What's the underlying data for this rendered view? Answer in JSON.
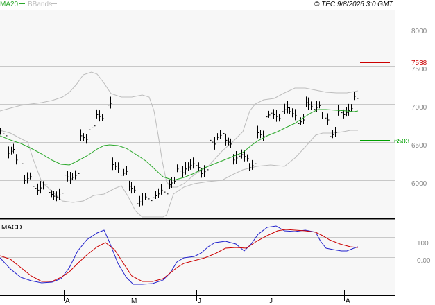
{
  "header": {
    "ma_label": "MA20",
    "bbands_label": "BBands",
    "copyright": "© TEC 9/8/2026 3:0 GMT"
  },
  "macd_label": "MACD",
  "colors": {
    "background": "#ffffff",
    "plot_bg": "#f7f7f7",
    "grid": "#c8c8c8",
    "frame": "#000000",
    "price_bar": "#000000",
    "ma20": "#2aa82a",
    "bbands": "#bcbcbc",
    "resistance": "#cc0000",
    "support": "#00a000",
    "macd_line": "#2222cc",
    "signal_line": "#cc0000",
    "axis_text": "#888888"
  },
  "chart_data": [
    {
      "type": "line",
      "title": "",
      "description_series": "daily OHLC price bars with 20-period moving average and Bollinger Bands",
      "y_axis_ticks": [
        "8000",
        "7500",
        "7000",
        "6500",
        "6000"
      ],
      "ylim": [
        5520,
        8220
      ],
      "x_axis_ticks": [
        "A",
        "M",
        "J",
        "J",
        "A"
      ],
      "grid": true,
      "levels": [
        {
          "name": "resistance",
          "value": 7538,
          "label": "7538"
        },
        {
          "name": "support",
          "value": 6503,
          "label": "6503"
        }
      ],
      "series": [
        {
          "name": "MA20",
          "values": [
            6560,
            6520,
            6470,
            6420,
            6370,
            6320,
            6260,
            6190,
            6150,
            6110,
            6095,
            6110,
            6180,
            6320,
            6480,
            6530,
            6500,
            6390,
            6240,
            6080,
            6020,
            6000,
            6010,
            6060,
            6130,
            6230,
            6360,
            6450,
            6520,
            6610,
            6700,
            6760,
            6860,
            6930,
            6940,
            6980,
            6980,
            6970,
            6965,
            6968
          ]
        },
        {
          "name": "price",
          "values": [
            6650,
            6420,
            6280,
            6060,
            5930,
            5960,
            5850,
            5840,
            6080,
            6100,
            6600,
            6730,
            6880,
            7030,
            6220,
            6130,
            5930,
            5750,
            5790,
            5830,
            5880,
            6000,
            6160,
            6210,
            6230,
            6150,
            6540,
            6630,
            6540,
            6330,
            6350,
            6230,
            6640,
            6900,
            6880,
            6970,
            6920,
            6810,
            7040,
            7000,
            6860,
            6640,
            6930,
            6960,
            7120
          ]
        },
        {
          "name": "BBands upper",
          "values": [
            6620,
            6660,
            6700,
            6720,
            6740,
            6770,
            6800,
            6860,
            6980,
            7120,
            7160,
            7140,
            6920,
            6400,
            6000,
            5720,
            5480,
            5420,
            5480,
            5580,
            5720,
            5950,
            6220,
            6500,
            6840,
            6820,
            6960,
            7210,
            7220,
            7280,
            7330,
            7400,
            7440,
            7450,
            7480,
            7480,
            7480,
            7470,
            7470,
            7480
          ]
        },
        {
          "name": "BBands lower",
          "values": [
            6420,
            6380,
            6300,
            6260,
            6000,
            5720,
            5560,
            5440,
            5430,
            5460,
            5500,
            5620,
            5720,
            5920,
            6050,
            6060,
            6060,
            6070,
            6080,
            6090,
            6120,
            6210,
            6290,
            6300,
            6290,
            6310,
            6330,
            6490,
            6590,
            6640,
            6680,
            6690,
            6680,
            6680,
            6690,
            6680,
            6690,
            6700,
            6710,
            6720
          ]
        }
      ]
    },
    {
      "type": "line",
      "title": "MACD",
      "y_axis_ticks": [
        "100",
        "0.00"
      ],
      "series": [
        {
          "name": "MACD",
          "values": [
            2,
            -20,
            -90,
            -150,
            -175,
            -180,
            -170,
            -160,
            -120,
            -40,
            80,
            200,
            280,
            300,
            220,
            90,
            -40,
            -140,
            -180,
            -190,
            -180,
            -160,
            -110,
            -40,
            20,
            60,
            80,
            100,
            140,
            160,
            130,
            100,
            70,
            60,
            100,
            200,
            260,
            270,
            240,
            220,
            210,
            200,
            150,
            20,
            -40,
            -40,
            -20,
            -10
          ]
        },
        {
          "name": "Signal",
          "values": [
            5,
            -5,
            -40,
            -90,
            -140,
            -170,
            -175,
            -170,
            -150,
            -110,
            -50,
            20,
            100,
            180,
            230,
            230,
            180,
            90,
            0,
            -80,
            -140,
            -170,
            -170,
            -150,
            -120,
            -80,
            -40,
            0,
            40,
            80,
            100,
            110,
            120,
            130,
            150,
            200,
            220,
            220,
            220,
            210,
            200,
            180,
            140,
            90,
            40,
            10,
            -10,
            -15
          ]
        }
      ]
    }
  ]
}
